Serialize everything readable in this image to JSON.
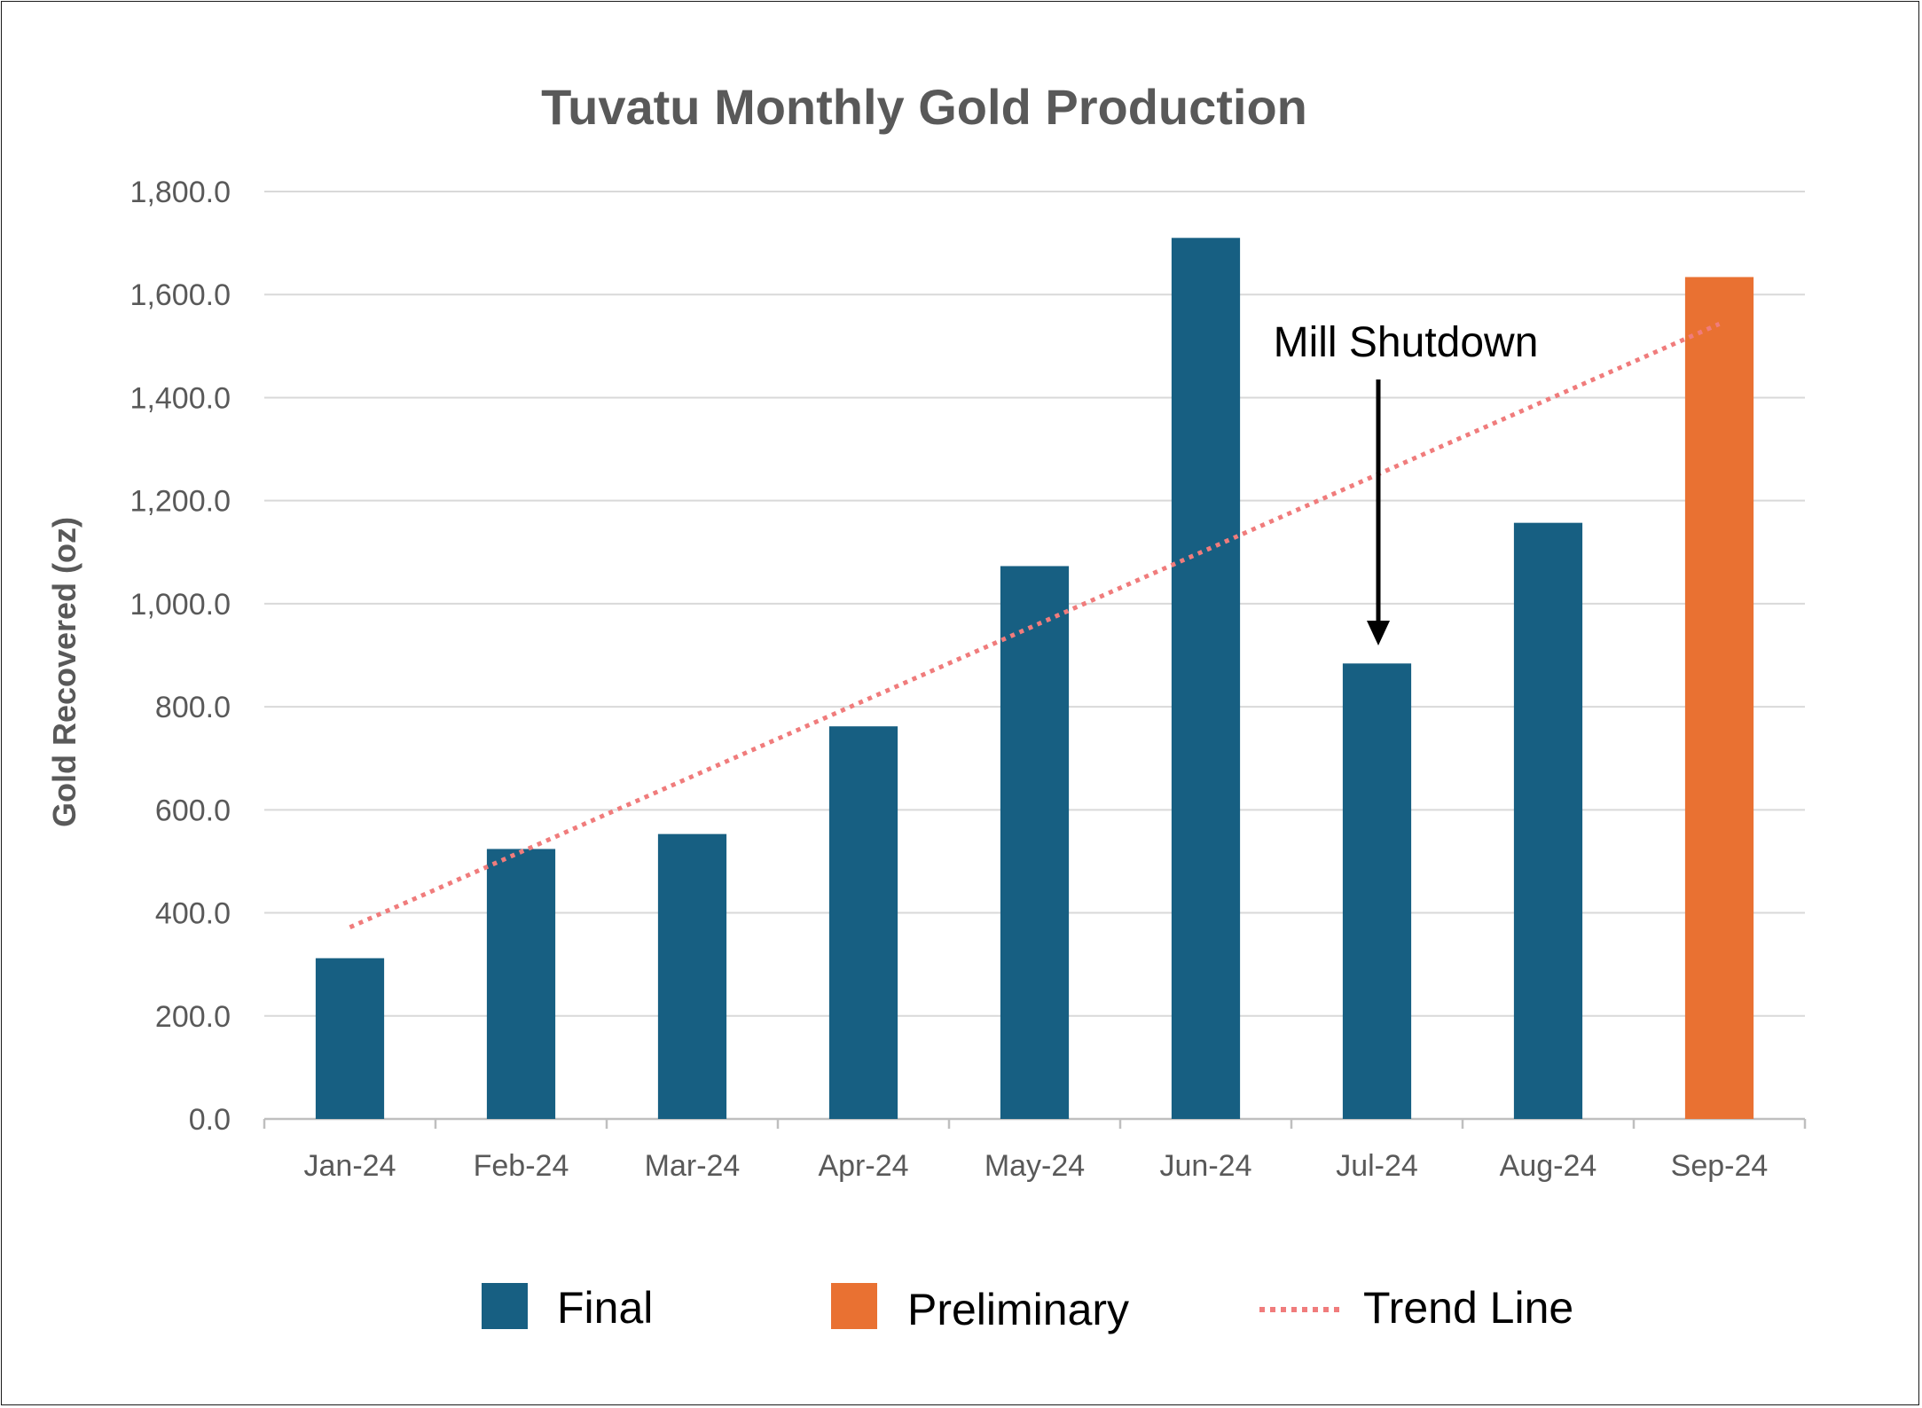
{
  "chart_data": {
    "type": "bar",
    "title": "Tuvatu Monthly Gold Production",
    "xlabel": "",
    "ylabel": "Gold Recovered (oz)",
    "ylim": [
      0,
      1800
    ],
    "yticks": [
      "0.0",
      "200.0",
      "400.0",
      "600.0",
      "800.0",
      "1,000.0",
      "1,200.0",
      "1,400.0",
      "1,600.0",
      "1,800.0"
    ],
    "categories": [
      "Jan-24",
      "Feb-24",
      "Mar-24",
      "Apr-24",
      "May-24",
      "Jun-24",
      "Jul-24",
      "Aug-24",
      "Sep-24"
    ],
    "values": [
      312,
      524,
      553,
      762,
      1073,
      1710,
      884,
      1157,
      1634
    ],
    "status": [
      "Final",
      "Final",
      "Final",
      "Final",
      "Final",
      "Final",
      "Final",
      "Final",
      "Preliminary"
    ],
    "trend_line": {
      "start": 372,
      "end": 1543,
      "style": "dotted"
    },
    "annotation": {
      "text": "Mill Shutdown",
      "category": "Jul-24"
    },
    "grid": true,
    "legend_position": "bottom",
    "legend": [
      {
        "label": "Final",
        "kind": "bar",
        "color": "#175F82"
      },
      {
        "label": "Preliminary",
        "kind": "bar",
        "color": "#E97132"
      },
      {
        "label": "Trend Line",
        "kind": "dotted-line",
        "color": "#F07C7C"
      }
    ],
    "colors": {
      "final": "#175F82",
      "preliminary": "#E97132",
      "trend": "#F07C7C",
      "grid": "#D9D9D9",
      "axis": "#BFBFBF",
      "text": "#595959"
    }
  }
}
